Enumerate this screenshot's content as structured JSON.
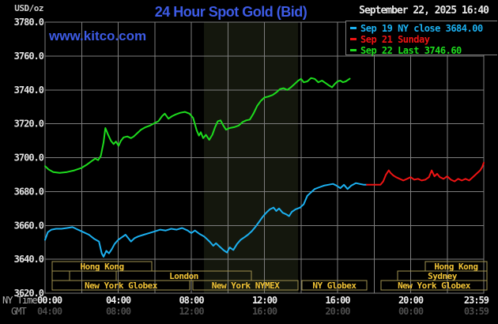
{
  "header": {
    "units_label": "USD/oz",
    "title": "24 Hour Spot Gold (Bid)",
    "datetime": "September 22, 2025 16:40",
    "watermark": "www.kitco.com"
  },
  "legend": {
    "items": [
      {
        "key": "sep19",
        "text": "Sep 19 NY close 3684.00",
        "color": "#1cb0f0"
      },
      {
        "key": "sep21",
        "text": "Sep 21 Sunday",
        "color": "#ee1414"
      },
      {
        "key": "sep22",
        "text": "Sep 22 Last 3746.60",
        "color": "#1edc1e"
      }
    ]
  },
  "axes": {
    "ny_time_label": "NY Time",
    "gmt_label": "GMT",
    "y_ticks": [
      "3780.0",
      "3760.0",
      "3740.0",
      "3720.0",
      "3700.0",
      "3680.0",
      "3660.0",
      "3640.0",
      "3620.0"
    ],
    "x_ticks": [
      {
        "hour": 0,
        "ny": "00:00",
        "gmt": "04:00",
        "anchor": "start"
      },
      {
        "hour": 4,
        "ny": "04:00",
        "gmt": "08:00",
        "anchor": "middle"
      },
      {
        "hour": 8,
        "ny": "08:00",
        "gmt": "12:00",
        "anchor": "middle"
      },
      {
        "hour": 12,
        "ny": "12:00",
        "gmt": "16:00",
        "anchor": "middle"
      },
      {
        "hour": 16,
        "ny": "16:00",
        "gmt": "20:00",
        "anchor": "middle"
      },
      {
        "hour": 20,
        "ny": "20:00",
        "gmt": "00:00",
        "anchor": "middle"
      },
      {
        "hour": 23.983,
        "ny": "23:59",
        "gmt": "03:59",
        "anchor": "end"
      }
    ]
  },
  "sessions": [
    {
      "row": 0,
      "label": "Hong Kong",
      "start_hour": 0.39,
      "end_hour": 5.84
    },
    {
      "row": 0,
      "label": "Hong Kong",
      "start_hour": 20.8,
      "end_hour": 24.17
    },
    {
      "row": 1,
      "label": "",
      "start_hour": 0.39,
      "end_hour": 1.34
    },
    {
      "row": 1,
      "label": "",
      "start_hour": 1.34,
      "end_hour": 3.89
    },
    {
      "row": 1,
      "label": "London",
      "start_hour": 3.89,
      "end_hour": 11.29
    },
    {
      "row": 1,
      "label": "Sydney",
      "start_hour": 19.29,
      "end_hour": 24.17
    },
    {
      "row": 2,
      "label": "New York Globex",
      "start_hour": 0.39,
      "end_hour": 7.91
    },
    {
      "row": 2,
      "label": "New York NYMEX",
      "start_hour": 8.09,
      "end_hour": 13.84
    },
    {
      "row": 2,
      "label": "NY Globex",
      "start_hour": 14.05,
      "end_hour": 17.6
    },
    {
      "row": 2,
      "label": "New York Globex",
      "start_hour": 18.38,
      "end_hour": 24.17
    }
  ],
  "styles": {
    "grid_color": "#7d7d7d",
    "band_color": "#14170d",
    "session_border_color": "#a0924f",
    "session_text_color": "#f2c437",
    "y_label_color": "#e2e2e2",
    "ny_tick_color": "#efefef",
    "gmt_tick_color": "#4c4c4c",
    "ny_time_label_color": "#b5b5b5",
    "gmt_label_color": "#858585",
    "title_color": "#3d5be5",
    "watermark_color": "#3d5be5",
    "datetime_color": "#e8e8e8"
  },
  "chart_data": {
    "type": "line",
    "title": "24 Hour Spot Gold (Bid)",
    "xlabel": "NY Time (hours)",
    "ylabel": "USD/oz",
    "xlim": [
      0,
      24
    ],
    "ylim": [
      3620,
      3780
    ],
    "y_grid_step": 20,
    "x_grid_step_hours": 2,
    "grid": true,
    "legend_position": "top-right",
    "nymex_band_hours": [
      8.69,
      13.84
    ],
    "series": [
      {
        "key": "sep19",
        "name": "Sep 19 NY close",
        "color": "#1cb0f0",
        "close_value": 3684.0,
        "points": [
          [
            0,
            3651.5
          ],
          [
            0.15,
            3656
          ],
          [
            0.35,
            3657.5
          ],
          [
            0.6,
            3658
          ],
          [
            0.9,
            3658
          ],
          [
            1.2,
            3658.5
          ],
          [
            1.5,
            3659
          ],
          [
            1.8,
            3657.5
          ],
          [
            2.1,
            3656
          ],
          [
            2.4,
            3654.5
          ],
          [
            2.7,
            3652
          ],
          [
            2.95,
            3650.5
          ],
          [
            3.1,
            3643.5
          ],
          [
            3.2,
            3641.5
          ],
          [
            3.35,
            3645
          ],
          [
            3.5,
            3643.5
          ],
          [
            3.65,
            3646
          ],
          [
            3.8,
            3649
          ],
          [
            4,
            3651.5
          ],
          [
            4.2,
            3653
          ],
          [
            4.4,
            3654.5
          ],
          [
            4.55,
            3652.5
          ],
          [
            4.7,
            3650.5
          ],
          [
            4.9,
            3652.5
          ],
          [
            5.1,
            3653.5
          ],
          [
            5.4,
            3654.5
          ],
          [
            5.7,
            3655.5
          ],
          [
            6,
            3656.5
          ],
          [
            6.3,
            3657.5
          ],
          [
            6.6,
            3657
          ],
          [
            6.9,
            3658
          ],
          [
            7.2,
            3657.5
          ],
          [
            7.5,
            3658.5
          ],
          [
            7.8,
            3657
          ],
          [
            8,
            3655.5
          ],
          [
            8.2,
            3657
          ],
          [
            8.45,
            3655
          ],
          [
            8.7,
            3653.5
          ],
          [
            9,
            3650.5
          ],
          [
            9.2,
            3648
          ],
          [
            9.35,
            3649.5
          ],
          [
            9.55,
            3647.5
          ],
          [
            9.75,
            3645.5
          ],
          [
            9.95,
            3644
          ],
          [
            10.1,
            3647
          ],
          [
            10.3,
            3645.5
          ],
          [
            10.5,
            3649
          ],
          [
            10.7,
            3651.5
          ],
          [
            10.9,
            3653
          ],
          [
            11.1,
            3654.5
          ],
          [
            11.3,
            3656.5
          ],
          [
            11.5,
            3659
          ],
          [
            11.7,
            3662
          ],
          [
            11.9,
            3665
          ],
          [
            12.1,
            3667.5
          ],
          [
            12.3,
            3669.5
          ],
          [
            12.5,
            3670.5
          ],
          [
            12.65,
            3668.5
          ],
          [
            12.8,
            3670
          ],
          [
            13,
            3667.5
          ],
          [
            13.2,
            3666.5
          ],
          [
            13.35,
            3665.5
          ],
          [
            13.5,
            3668
          ],
          [
            13.7,
            3669.5
          ],
          [
            13.95,
            3670.5
          ],
          [
            14.15,
            3672.5
          ],
          [
            14.35,
            3677.5
          ],
          [
            14.55,
            3679.5
          ],
          [
            14.75,
            3681.5
          ],
          [
            15,
            3682.5
          ],
          [
            15.25,
            3683.5
          ],
          [
            15.5,
            3684
          ],
          [
            15.75,
            3684.5
          ],
          [
            15.95,
            3683.5
          ],
          [
            16.15,
            3682
          ],
          [
            16.35,
            3684
          ],
          [
            16.55,
            3681.5
          ],
          [
            16.75,
            3683.5
          ],
          [
            17,
            3685
          ],
          [
            17.2,
            3684.5
          ],
          [
            17.45,
            3684
          ],
          [
            17.6,
            3684
          ]
        ]
      },
      {
        "key": "sep21",
        "name": "Sep 21 Sunday",
        "color": "#ee1414",
        "points": [
          [
            17.6,
            3684
          ],
          [
            18.35,
            3684
          ],
          [
            18.5,
            3686
          ],
          [
            18.65,
            3690
          ],
          [
            18.8,
            3692.5
          ],
          [
            18.9,
            3691
          ],
          [
            19.05,
            3689.5
          ],
          [
            19.2,
            3688.5
          ],
          [
            19.4,
            3687.5
          ],
          [
            19.6,
            3686.5
          ],
          [
            19.8,
            3687.5
          ],
          [
            20,
            3688.5
          ],
          [
            20.2,
            3687
          ],
          [
            20.4,
            3687.5
          ],
          [
            20.6,
            3686.5
          ],
          [
            20.8,
            3687
          ],
          [
            21,
            3688.5
          ],
          [
            21.15,
            3692.5
          ],
          [
            21.3,
            3689
          ],
          [
            21.45,
            3690.5
          ],
          [
            21.6,
            3688.5
          ],
          [
            21.8,
            3687.5
          ],
          [
            22,
            3689
          ],
          [
            22.2,
            3687
          ],
          [
            22.4,
            3686
          ],
          [
            22.6,
            3687.5
          ],
          [
            22.8,
            3686.5
          ],
          [
            23,
            3687.5
          ],
          [
            23.2,
            3686.5
          ],
          [
            23.4,
            3688.5
          ],
          [
            23.6,
            3690.5
          ],
          [
            23.8,
            3692.5
          ],
          [
            23.92,
            3694.5
          ],
          [
            24,
            3697
          ]
        ]
      },
      {
        "key": "sep22",
        "name": "Sep 22",
        "color": "#1edc1e",
        "last_value": 3746.6,
        "last_time": "16:40",
        "points": [
          [
            0,
            3695
          ],
          [
            0.2,
            3693
          ],
          [
            0.45,
            3691.5
          ],
          [
            0.8,
            3691
          ],
          [
            1.2,
            3691.5
          ],
          [
            1.6,
            3692.5
          ],
          [
            2,
            3694
          ],
          [
            2.3,
            3696
          ],
          [
            2.55,
            3698
          ],
          [
            2.75,
            3699.5
          ],
          [
            2.9,
            3698.5
          ],
          [
            3.05,
            3701
          ],
          [
            3.2,
            3709
          ],
          [
            3.3,
            3717.5
          ],
          [
            3.45,
            3713.5
          ],
          [
            3.6,
            3710
          ],
          [
            3.75,
            3708
          ],
          [
            3.88,
            3709.5
          ],
          [
            4.02,
            3707
          ],
          [
            4.15,
            3710
          ],
          [
            4.3,
            3712
          ],
          [
            4.5,
            3712.5
          ],
          [
            4.7,
            3711.5
          ],
          [
            4.85,
            3712.5
          ],
          [
            5.05,
            3714.5
          ],
          [
            5.25,
            3716.5
          ],
          [
            5.5,
            3718
          ],
          [
            5.75,
            3719
          ],
          [
            6,
            3720.5
          ],
          [
            6.2,
            3721.5
          ],
          [
            6.4,
            3724.5
          ],
          [
            6.55,
            3726
          ],
          [
            6.75,
            3723
          ],
          [
            6.95,
            3724.5
          ],
          [
            7.15,
            3725.5
          ],
          [
            7.4,
            3726.5
          ],
          [
            7.65,
            3727
          ],
          [
            7.9,
            3726
          ],
          [
            8.1,
            3723.5
          ],
          [
            8.3,
            3716
          ],
          [
            8.42,
            3713
          ],
          [
            8.52,
            3715
          ],
          [
            8.65,
            3711.5
          ],
          [
            8.8,
            3713.5
          ],
          [
            8.98,
            3710.5
          ],
          [
            9.15,
            3713.5
          ],
          [
            9.3,
            3718
          ],
          [
            9.45,
            3721.5
          ],
          [
            9.6,
            3722
          ],
          [
            9.75,
            3719
          ],
          [
            9.9,
            3716.5
          ],
          [
            10.1,
            3717.5
          ],
          [
            10.35,
            3718
          ],
          [
            10.6,
            3719
          ],
          [
            10.8,
            3721
          ],
          [
            11,
            3722
          ],
          [
            11.2,
            3722.5
          ],
          [
            11.4,
            3726
          ],
          [
            11.6,
            3730.5
          ],
          [
            11.8,
            3733.5
          ],
          [
            12,
            3735.5
          ],
          [
            12.2,
            3736
          ],
          [
            12.45,
            3737
          ],
          [
            12.65,
            3738.5
          ],
          [
            12.85,
            3740.5
          ],
          [
            13.05,
            3741
          ],
          [
            13.25,
            3740
          ],
          [
            13.45,
            3741.5
          ],
          [
            13.65,
            3743.5
          ],
          [
            13.85,
            3745.5
          ],
          [
            14,
            3746.5
          ],
          [
            14.15,
            3744.5
          ],
          [
            14.35,
            3745
          ],
          [
            14.55,
            3747
          ],
          [
            14.75,
            3746.5
          ],
          [
            14.95,
            3744.5
          ],
          [
            15.15,
            3745.5
          ],
          [
            15.35,
            3744
          ],
          [
            15.55,
            3742.5
          ],
          [
            15.7,
            3741.5
          ],
          [
            15.85,
            3743.5
          ],
          [
            16,
            3745
          ],
          [
            16.15,
            3745.5
          ],
          [
            16.3,
            3744.5
          ],
          [
            16.45,
            3745
          ],
          [
            16.67,
            3746.6
          ]
        ]
      }
    ]
  }
}
